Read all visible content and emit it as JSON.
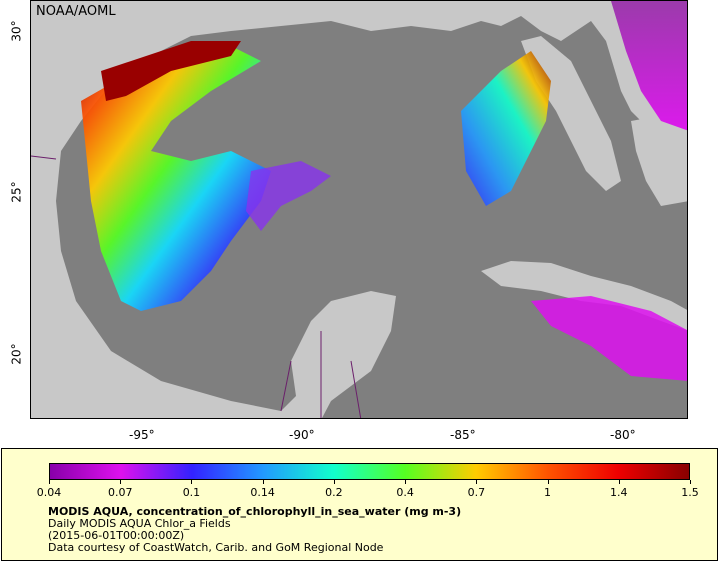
{
  "map": {
    "credit": "NOAA/AOML",
    "longitude_ticks": [
      "-95°",
      "-90°",
      "-85°",
      "-80°"
    ],
    "latitude_ticks": [
      "30°",
      "25°",
      "20°"
    ],
    "colors": {
      "ocean_no_data": "#7f7f7f",
      "land": "#c8c8c8",
      "border": "#6b1f6b",
      "coast": "#000000"
    }
  },
  "legend": {
    "colorbar_ticks": [
      "0.04",
      "0.07",
      "0.1",
      "0.14",
      "0.2",
      "0.4",
      "0.7",
      "1",
      "1.4",
      "1.5"
    ],
    "colorbar_colors": [
      "#8800aa",
      "#dd11ee",
      "#3322ff",
      "#2299ff",
      "#11ffcc",
      "#55ff22",
      "#ffcc00",
      "#ff5500",
      "#ee0000",
      "#880000"
    ],
    "title": "MODIS AQUA, concentration_of_chlorophyll_in_sea_water (mg m-3)",
    "line1": "Daily MODIS AQUA Chlor_a Fields",
    "line2": "(2015-06-01T00:00:00Z)",
    "line3": "Data courtesy of CoastWatch, Carib. and GoM Regional Node"
  }
}
